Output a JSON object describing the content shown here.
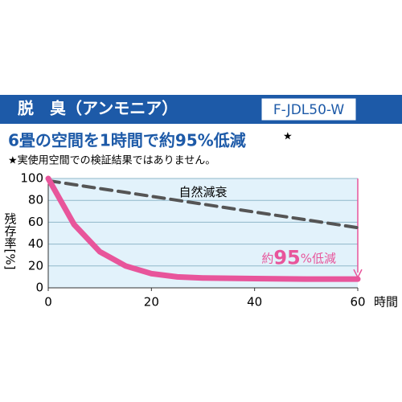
{
  "header": {
    "title": "脱　臭（アンモニア）",
    "model": "F-JDL50-W"
  },
  "chart_data": {
    "type": "line",
    "title": "6畳の空間を1時間で約95%低減",
    "title_mark": "★",
    "note": "★実使用空間での検証結果ではありません。",
    "ylabel": "残存率[%]",
    "xlabel": "時間",
    "x": [
      0,
      5,
      10,
      15,
      20,
      25,
      30,
      40,
      50,
      60
    ],
    "series": [
      {
        "name": "自然減衰",
        "color": "#555555",
        "dashed": true,
        "values": [
          98,
          94.4,
          90.8,
          87.3,
          83.7,
          80.1,
          76.5,
          69.3,
          62.2,
          55
        ]
      },
      {
        "color": "#e8559b",
        "dashed": false,
        "values": [
          100,
          58,
          33,
          20,
          13,
          10,
          9,
          8.5,
          8,
          8
        ]
      }
    ],
    "reduction_label": [
      "約",
      "95",
      "%低減"
    ],
    "xlim": [
      0,
      60
    ],
    "xticks": [
      0,
      20,
      40,
      60
    ],
    "ylim": [
      0,
      100
    ],
    "yticks": [
      0,
      20,
      40,
      60,
      80,
      100
    ],
    "grid": true,
    "plot_background": "#e2f2fb"
  }
}
